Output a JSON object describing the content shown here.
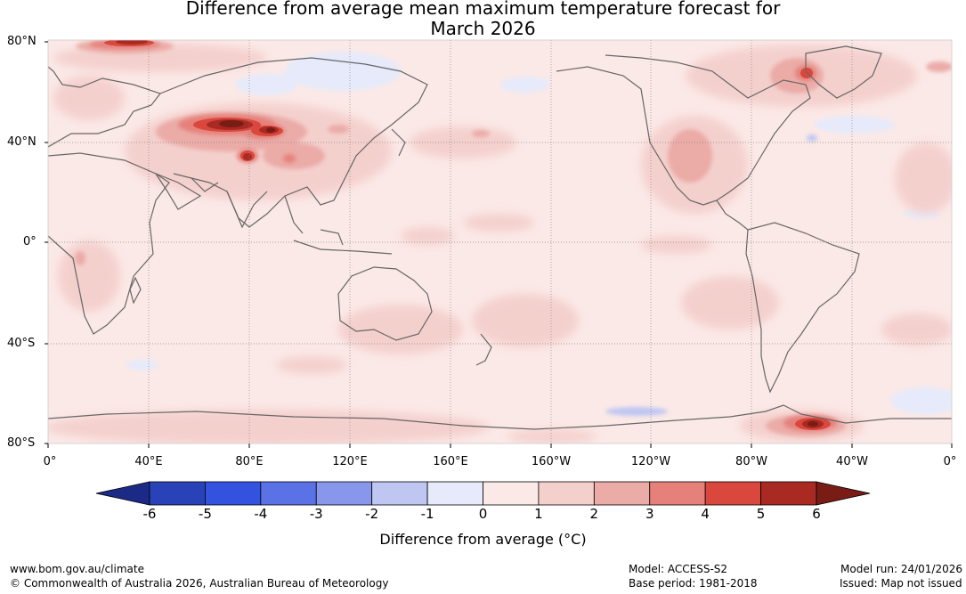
{
  "title_line1": "Difference from average mean maximum temperature forecast for",
  "title_line2": "March 2026",
  "lat_labels": [
    "80°N",
    "40°N",
    "0°",
    "40°S",
    "80°S"
  ],
  "lon_labels": [
    "0°",
    "40°E",
    "80°E",
    "120°E",
    "160°E",
    "160°W",
    "120°W",
    "80°W",
    "40°W",
    "0°"
  ],
  "legend": {
    "label": "Difference from average (°C)",
    "ticks": [
      "-6",
      "-5",
      "-4",
      "-3",
      "-2",
      "-1",
      "0",
      "1",
      "2",
      "3",
      "4",
      "5",
      "6"
    ],
    "colors": [
      "#1b2a86",
      "#2a42b8",
      "#3452e0",
      "#5a72e6",
      "#8897ec",
      "#bfc6f2",
      "#e6eafa",
      "#fbe9e7",
      "#f4d0cd",
      "#ebaba7",
      "#e5817a",
      "#d9473d",
      "#a82a22",
      "#7a1c16"
    ]
  },
  "footer": {
    "website": "www.bom.gov.au/climate",
    "copyright": "© Commonwealth of Australia 2026, Australian Bureau of Meteorology",
    "model": "Model: ACCESS-S2",
    "base_period": "Base period: 1981-2018",
    "model_run": "Model run: 24/01/2026",
    "issued": "Issued: Map not issued"
  }
}
